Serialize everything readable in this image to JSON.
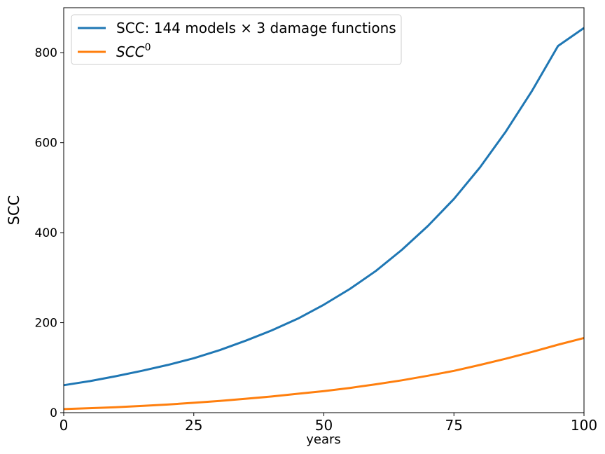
{
  "chart_data": {
    "type": "line",
    "xlabel": "years",
    "ylabel": "SCC",
    "xlim": [
      0,
      100
    ],
    "ylim": [
      0,
      900
    ],
    "xticks": [
      0,
      25,
      50,
      75,
      100
    ],
    "yticks": [
      0,
      200,
      400,
      600,
      800
    ],
    "grid": false,
    "legend_position": "upper-left",
    "x": [
      0,
      5,
      10,
      15,
      20,
      25,
      30,
      35,
      40,
      45,
      50,
      55,
      60,
      65,
      70,
      75,
      80,
      85,
      90,
      95,
      100
    ],
    "series": [
      {
        "name": "SCC: 144 models × 3 damage functions",
        "color": "#1f77b4",
        "values": [
          61,
          70,
          81,
          93,
          106,
          121,
          139,
          160,
          183,
          209,
          240,
          275,
          315,
          362,
          415,
          475,
          545,
          625,
          715,
          815,
          855
        ]
      },
      {
        "name_base": "SCC",
        "name_sup": "0",
        "color": "#ff7f0e",
        "values": [
          8,
          10,
          12,
          15,
          18,
          22,
          26,
          31,
          36,
          42,
          48,
          55,
          63,
          72,
          82,
          93,
          106,
          120,
          135,
          151,
          166
        ]
      }
    ]
  }
}
